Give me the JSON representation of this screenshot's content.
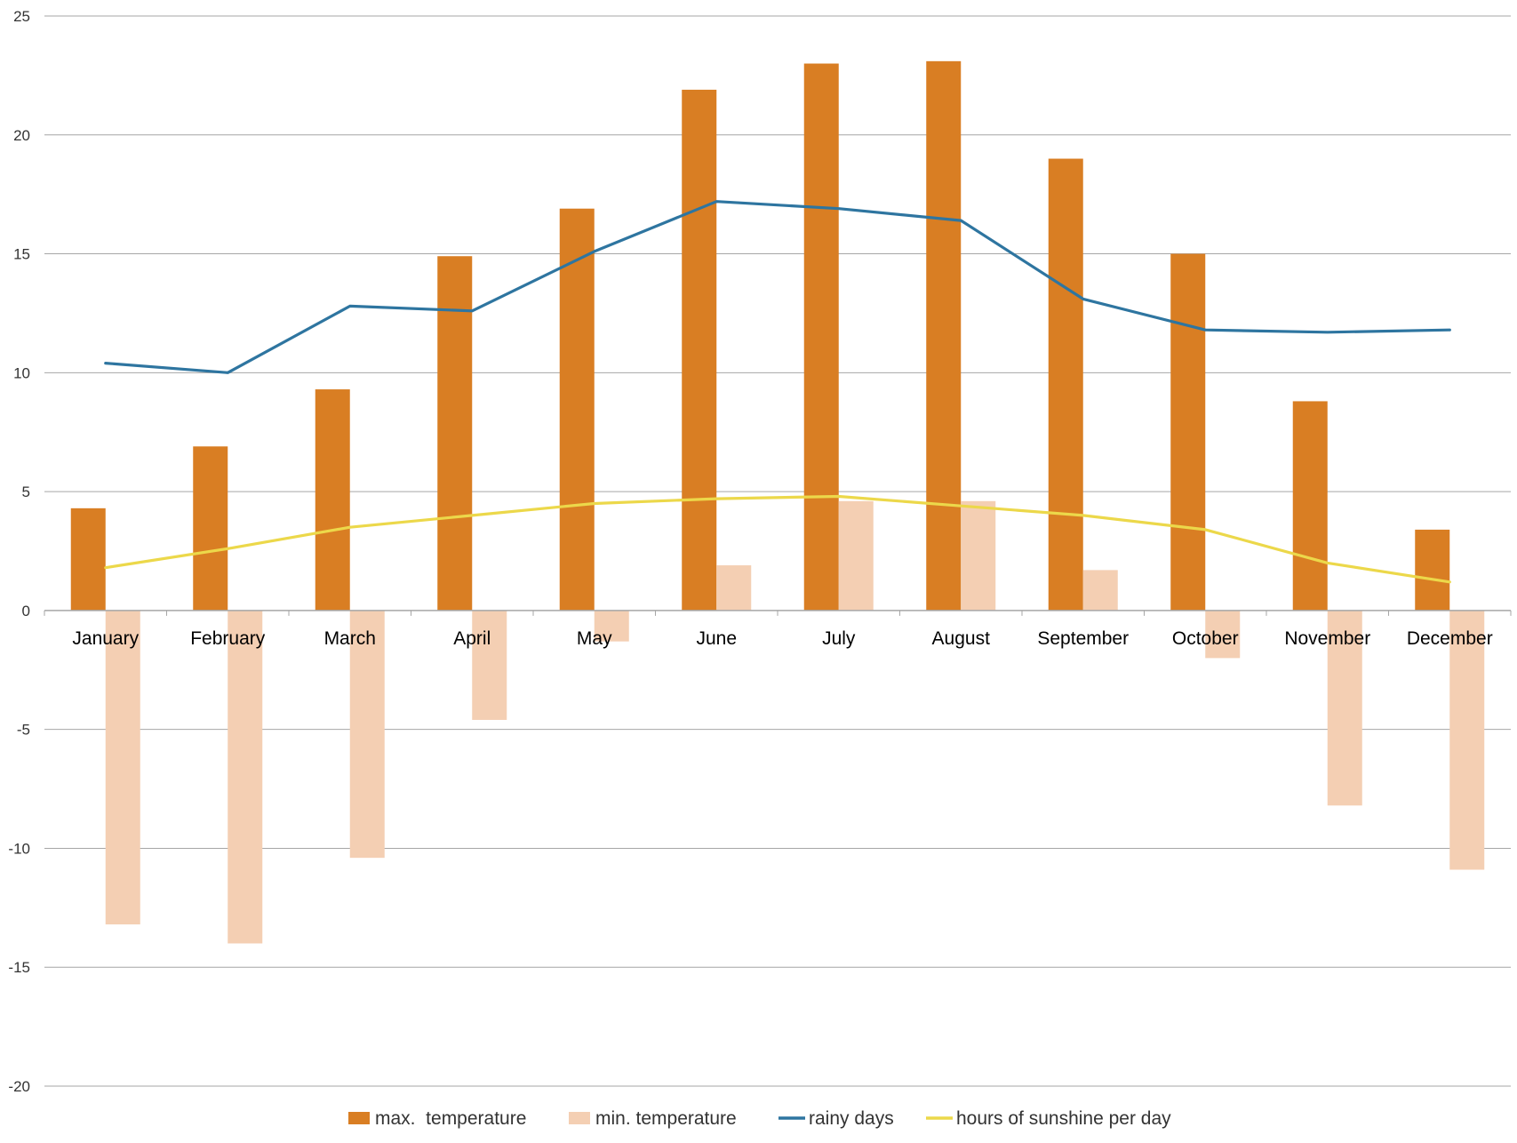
{
  "colors": {
    "max_temperature": "#d97e23",
    "min_temperature": "#f4cfb3",
    "rainy_days": "#2e75a0",
    "sunshine": "#ecd84a",
    "grid": "#a6a6a6",
    "axis": "#a6a6a6"
  },
  "chart_data": {
    "type": "bar",
    "title": "",
    "xlabel": "",
    "ylabel": "",
    "ylim": [
      -20,
      25
    ],
    "yticks": [
      -20,
      -15,
      -10,
      -5,
      0,
      5,
      10,
      15,
      20,
      25
    ],
    "grid": true,
    "legend_position": "bottom",
    "categories": [
      "January",
      "February",
      "March",
      "April",
      "May",
      "June",
      "July",
      "August",
      "September",
      "October",
      "November",
      "December"
    ],
    "series": [
      {
        "name": "max.  temperature",
        "kind": "bar",
        "color": "#d97e23",
        "values": [
          4.3,
          6.9,
          9.3,
          14.9,
          16.9,
          21.9,
          23.0,
          23.1,
          19.0,
          15.0,
          8.8,
          3.4
        ]
      },
      {
        "name": "min. temperature",
        "kind": "bar",
        "color": "#f4cfb3",
        "values": [
          -13.2,
          -14.0,
          -10.4,
          -4.6,
          -1.3,
          1.9,
          4.6,
          4.6,
          1.7,
          -2.0,
          -8.2,
          -10.9
        ]
      },
      {
        "name": "rainy days",
        "kind": "line",
        "color": "#2e75a0",
        "values": [
          10.4,
          10.0,
          12.8,
          12.6,
          15.1,
          17.2,
          16.9,
          16.4,
          13.1,
          11.8,
          11.7,
          11.8
        ]
      },
      {
        "name": "hours of sunshine per day",
        "kind": "line",
        "color": "#ecd84a",
        "values": [
          1.8,
          2.6,
          3.5,
          4.0,
          4.5,
          4.7,
          4.8,
          4.4,
          4.0,
          3.4,
          2.0,
          1.2
        ]
      }
    ]
  }
}
